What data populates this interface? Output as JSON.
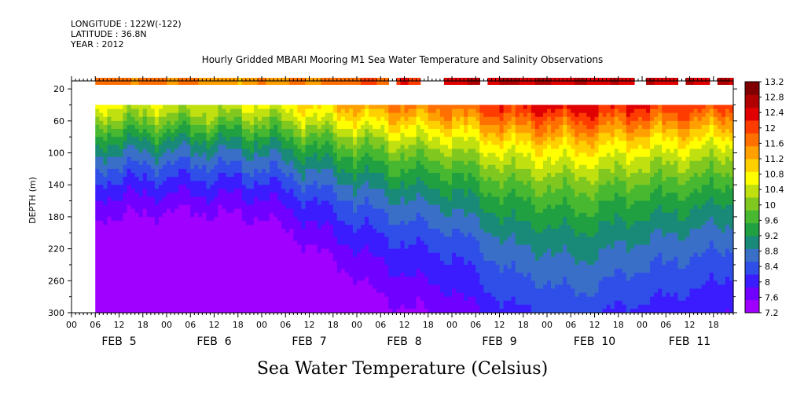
{
  "header": {
    "longitude": "LONGITUDE : 122W(-122)",
    "latitude": "LATITUDE : 36.8N",
    "year": "YEAR : 2012"
  },
  "footer_title": "Sea Water Temperature (Celsius)",
  "chart_data": {
    "type": "heatmap",
    "title": "Hourly Gridded MBARI Mooring M1 Sea Water Temperature and Salinity Observations",
    "xlabel": "",
    "ylabel": "DEPTH (m)",
    "ylim": [
      300,
      10
    ],
    "yticks": [
      20,
      60,
      100,
      140,
      180,
      220,
      260,
      300
    ],
    "x_hour_range": [
      0,
      167
    ],
    "x_data_start_hour": 6,
    "x_hour_ticks": [
      "00",
      "06",
      "12",
      "18",
      "00",
      "06",
      "12",
      "18",
      "00",
      "06",
      "12",
      "18",
      "00",
      "06",
      "12",
      "18",
      "00",
      "06",
      "12",
      "18",
      "00",
      "06",
      "12",
      "18",
      "00",
      "06",
      "12",
      "18"
    ],
    "date_labels": [
      "FEB 5",
      "FEB 6",
      "FEB 7",
      "FEB 8",
      "FEB 9",
      "FEB 10",
      "FEB 11"
    ],
    "colorbar": {
      "min": 7.2,
      "max": 13.2,
      "labels": [
        13.2,
        12.8,
        12.4,
        12,
        11.6,
        11.2,
        10.8,
        10.4,
        10,
        9.6,
        9.2,
        8.8,
        8.4,
        8,
        7.6,
        7.2
      ],
      "colors": [
        "#a000ff",
        "#7000ff",
        "#3a1cff",
        "#2f4fe8",
        "#3a6fc8",
        "#1a8a78",
        "#20a040",
        "#48b830",
        "#80c820",
        "#c0e010",
        "#ffff00",
        "#ffd000",
        "#ffa000",
        "#ff7000",
        "#ff3c00",
        "#e00000",
        "#b00000",
        "#800000"
      ]
    },
    "surface_band": {
      "depth": 10,
      "gaps_hours": [
        [
          80,
          82
        ],
        [
          88,
          94
        ],
        [
          103,
          105
        ],
        [
          142,
          145
        ],
        [
          153,
          155
        ],
        [
          161,
          163
        ]
      ],
      "values": [
        [
          6,
          11.7
        ],
        [
          30,
          11.6
        ],
        [
          40,
          11.3
        ],
        [
          52,
          11.5
        ],
        [
          64,
          11.6
        ],
        [
          88,
          12.2
        ],
        [
          104,
          12.6
        ],
        [
          120,
          12.5
        ],
        [
          140,
          12.4
        ],
        [
          167,
          12.5
        ]
      ]
    },
    "thermocline_top_depth": 40,
    "surface_temp_hourly": [
      [
        6,
        10.6
      ],
      [
        30,
        10.5
      ],
      [
        48,
        10.6
      ],
      [
        66,
        11.2
      ],
      [
        80,
        11.6
      ],
      [
        96,
        11.8
      ],
      [
        110,
        12.3
      ],
      [
        128,
        12.5
      ],
      [
        140,
        12.3
      ],
      [
        160,
        12.1
      ],
      [
        167,
        12.0
      ]
    ],
    "depth_profile": [
      [
        40,
        0
      ],
      [
        60,
        -0.6
      ],
      [
        80,
        -1.2
      ],
      [
        100,
        -1.7
      ],
      [
        130,
        -2.3
      ],
      [
        160,
        -2.8
      ],
      [
        200,
        -3.3
      ],
      [
        240,
        -3.7
      ],
      [
        280,
        -4.0
      ],
      [
        300,
        -4.2
      ]
    ]
  }
}
